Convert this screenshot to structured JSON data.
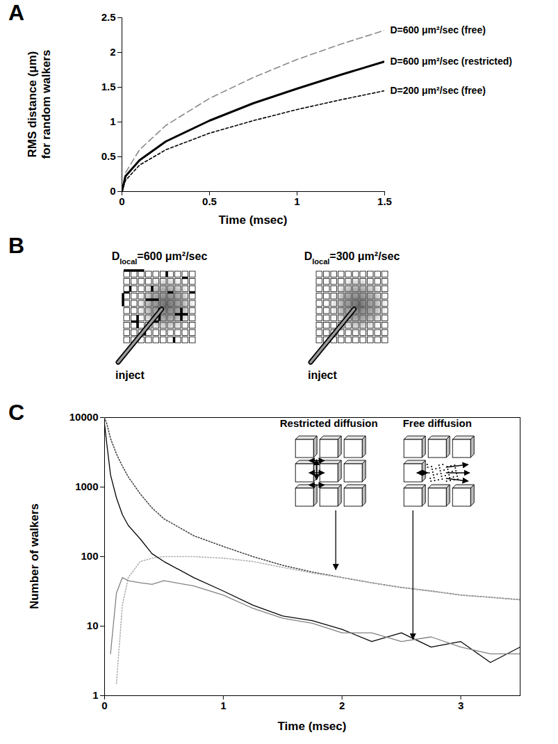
{
  "chart_data": [
    {
      "panel": "A",
      "type": "line",
      "xlabel": "Time (msec)",
      "ylabel": "RMS distance (μm) for random walkers",
      "x": [
        0,
        0.02,
        0.1,
        0.25,
        0.5,
        0.75,
        1,
        1.25,
        1.5
      ],
      "series": [
        {
          "name": "D=600 μm²/sec (free)",
          "color": "#888888",
          "line_style": "dashed",
          "values": [
            0,
            0.27,
            0.6,
            0.95,
            1.34,
            1.64,
            1.9,
            2.12,
            2.32
          ]
        },
        {
          "name": "D=600 μm²/sec (restricted)",
          "color": "#000000",
          "line_style": "solid",
          "values": [
            0,
            0.22,
            0.45,
            0.72,
            1.02,
            1.27,
            1.48,
            1.68,
            1.87
          ]
        },
        {
          "name": "D=200 μm²/sec (free)",
          "color": "#000000",
          "line_style": "short-dashed",
          "values": [
            0,
            0.16,
            0.38,
            0.6,
            0.84,
            1.02,
            1.18,
            1.32,
            1.45
          ]
        }
      ],
      "xlim": [
        0,
        1.5
      ],
      "xticks": [
        0,
        0.5,
        1,
        1.5
      ],
      "ylim": [
        0,
        2.5
      ],
      "yticks": [
        0,
        0.5,
        1,
        1.5,
        2,
        2.5
      ]
    },
    {
      "panel": "C",
      "type": "line",
      "log": "y",
      "xlabel": "Time (msec)",
      "ylabel": "Number of walkers",
      "x": [
        0,
        0.02,
        0.05,
        0.1,
        0.15,
        0.2,
        0.3,
        0.4,
        0.5,
        0.75,
        1,
        1.25,
        1.5,
        1.75,
        2,
        2.25,
        2.5,
        2.75,
        3,
        3.25,
        3.5
      ],
      "series": [
        {
          "color": "#444444",
          "line_style": "dotted",
          "values": [
            10000,
            8000,
            5000,
            3000,
            2000,
            1400,
            800,
            500,
            350,
            200,
            140,
            100,
            75,
            60,
            50,
            42,
            36,
            32,
            28,
            26,
            24
          ]
        },
        {
          "color": "#b0b0b0",
          "line_style": "dotted",
          "values": [
            null,
            null,
            null,
            1.5,
            20,
            50,
            85,
            95,
            100,
            100,
            95,
            85,
            70,
            58,
            50,
            42,
            36,
            32,
            28,
            26,
            24
          ]
        },
        {
          "color": "#000000",
          "line_style": "solid",
          "values": [
            8000,
            4000,
            1500,
            700,
            400,
            280,
            180,
            110,
            85,
            50,
            32,
            20,
            14,
            12,
            9,
            6,
            8,
            5,
            6,
            3,
            5
          ]
        },
        {
          "color": "#808080",
          "line_style": "solid",
          "values": [
            null,
            null,
            4,
            30,
            50,
            45,
            42,
            40,
            45,
            38,
            28,
            18,
            13,
            11,
            8,
            8,
            6,
            7,
            5,
            4,
            4
          ]
        }
      ],
      "annotations": [
        {
          "text": "Restricted diffusion",
          "x": 1.95,
          "y": 60
        },
        {
          "text": "Free diffusion",
          "x": 2.6,
          "y": 6
        }
      ],
      "xlim": [
        0,
        3.5
      ],
      "xticks": [
        0,
        1,
        2,
        3
      ],
      "ylim": [
        1,
        10000
      ],
      "yticks": [
        1,
        10,
        100,
        1000,
        10000
      ]
    }
  ],
  "diagram": {
    "panel": "B",
    "grids": [
      {
        "label": {
          "main": "D",
          "subscript": "local",
          "rest": "=600 μm²/sec"
        },
        "walls": true,
        "pointer": "inject"
      },
      {
        "label": {
          "main": "D",
          "subscript": "local",
          "rest": "=300 μm²/sec"
        },
        "walls": false,
        "pointer": "inject"
      }
    ]
  }
}
